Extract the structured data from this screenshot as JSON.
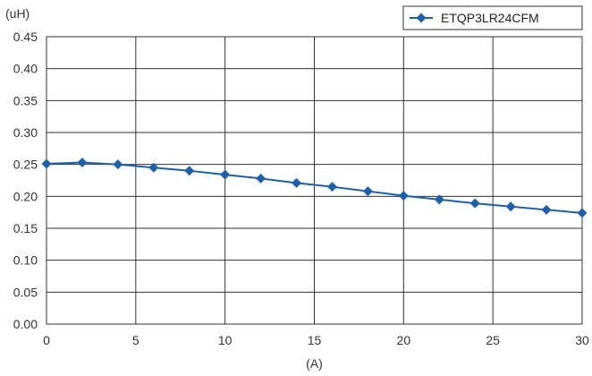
{
  "chart_data": {
    "type": "line",
    "title": "",
    "xlabel": "(A)",
    "ylabel": "(uH)",
    "xlim": [
      0,
      30
    ],
    "ylim": [
      0,
      0.45
    ],
    "grid": true,
    "legend_position": "top-right",
    "x_ticks": [
      "0",
      "5",
      "10",
      "15",
      "20",
      "25",
      "30"
    ],
    "y_ticks": [
      "0.00",
      "0.05",
      "0.10",
      "0.15",
      "0.20",
      "0.25",
      "0.30",
      "0.35",
      "0.40",
      "0.45"
    ],
    "series": [
      {
        "name": "ETQP3LR24CFM",
        "color": "#1f5fa8",
        "marker": "diamond",
        "x": [
          0,
          2,
          4,
          6,
          8,
          10,
          12,
          14,
          16,
          18,
          20,
          22,
          24,
          26,
          28,
          30
        ],
        "y": [
          0.251,
          0.253,
          0.25,
          0.245,
          0.24,
          0.234,
          0.228,
          0.221,
          0.215,
          0.208,
          0.201,
          0.195,
          0.189,
          0.184,
          0.179,
          0.174
        ]
      }
    ]
  }
}
